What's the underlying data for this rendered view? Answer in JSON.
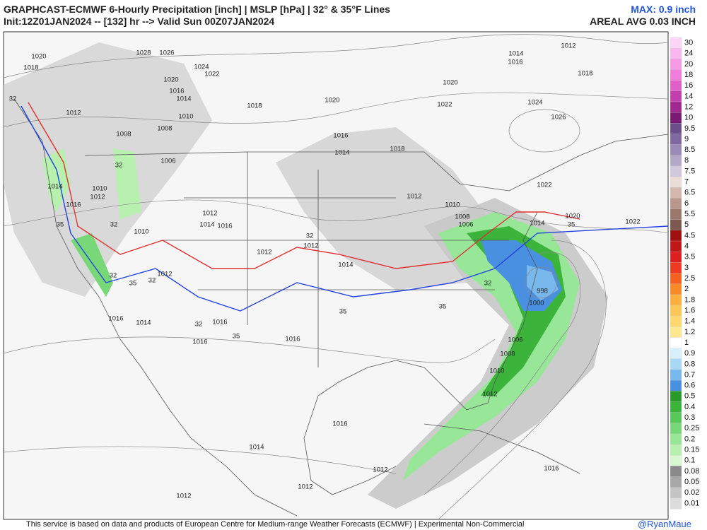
{
  "header": {
    "title": "GRAPHCAST-ECMWF 6-Hourly Precipitation [inch] | MSLP [hPa] | 32° & 35°F Lines",
    "init": "Init:12Z01JAN2024 -- [132] hr --> Valid Sun 00Z07JAN2024",
    "max": "MAX: 0.9 inch",
    "areal_avg": "AREAL AVG 0.03 INCH"
  },
  "map_labels": [
    "1020",
    "1018",
    "1028",
    "1026",
    "1024",
    "1022",
    "1020",
    "1016",
    "1014",
    "1010",
    "1008",
    "1008",
    "1006",
    "1018",
    "1020",
    "1016",
    "1014",
    "1018",
    "1020",
    "1022",
    "1014",
    "1016",
    "1012",
    "1018",
    "1024",
    "1026",
    "1022",
    "1020",
    "1022",
    "1014",
    "1012",
    "1014",
    "1016",
    "1010",
    "1012",
    "1010",
    "1012",
    "1014",
    "1016",
    "1012",
    "1012",
    "1014",
    "1012",
    "1010",
    "1008",
    "1006",
    "998",
    "1000",
    "1006",
    "1008",
    "1010",
    "1012",
    "1016",
    "1014",
    "1016",
    "1016",
    "1016",
    "1014",
    "1012",
    "1012",
    "1012",
    "1016",
    "1012",
    "1016",
    "32",
    "32",
    "32",
    "35",
    "35",
    "32",
    "32",
    "32",
    "35",
    "35",
    "32",
    "35",
    "35",
    "32"
  ],
  "colorbar": {
    "labels": [
      "30",
      "24",
      "20",
      "18",
      "16",
      "14",
      "12",
      "10",
      "9.5",
      "9",
      "8.5",
      "8",
      "7.5",
      "7",
      "6.5",
      "6",
      "5.5",
      "5",
      "4.5",
      "4",
      "3.5",
      "3",
      "2.5",
      "2",
      "1.8",
      "1.6",
      "1.4",
      "1.2",
      "1",
      "0.9",
      "0.8",
      "0.7",
      "0.6",
      "0.5",
      "0.4",
      "0.3",
      "0.25",
      "0.2",
      "0.15",
      "0.1",
      "0.08",
      "0.05",
      "0.02",
      "0.01"
    ],
    "colors": [
      "#fbd5f5",
      "#f8b8ef",
      "#f59be6",
      "#f07fdb",
      "#e05fc8",
      "#c43fae",
      "#a02890",
      "#7a1a72",
      "#6a4e8a",
      "#7e6aa0",
      "#9a8ab6",
      "#b4a8c8",
      "#d0c8dc",
      "#eadcd6",
      "#d4b8ae",
      "#b8988c",
      "#9a786c",
      "#7c584e",
      "#a01010",
      "#c01818",
      "#dc2020",
      "#ee3a20",
      "#f46020",
      "#f88a28",
      "#fbb040",
      "#fcc858",
      "#fdd870",
      "#fde890",
      "#ffffff",
      "#d8f0fa",
      "#a8d8f4",
      "#78b8ec",
      "#4a90e0",
      "#2a9a2a",
      "#3cb43c",
      "#58c858",
      "#78d878",
      "#98e698",
      "#b8f0b0",
      "#d8f8d0",
      "#8a8a8a",
      "#a8a8a8",
      "#c4c4c4",
      "#dcdcdc"
    ]
  },
  "footer": {
    "credit": "This service is based on data and products of European Centre for Medium-range Weather Forecasts (ECMWF) | Experimental Non-Commercial",
    "author": "@RyanMaue"
  }
}
